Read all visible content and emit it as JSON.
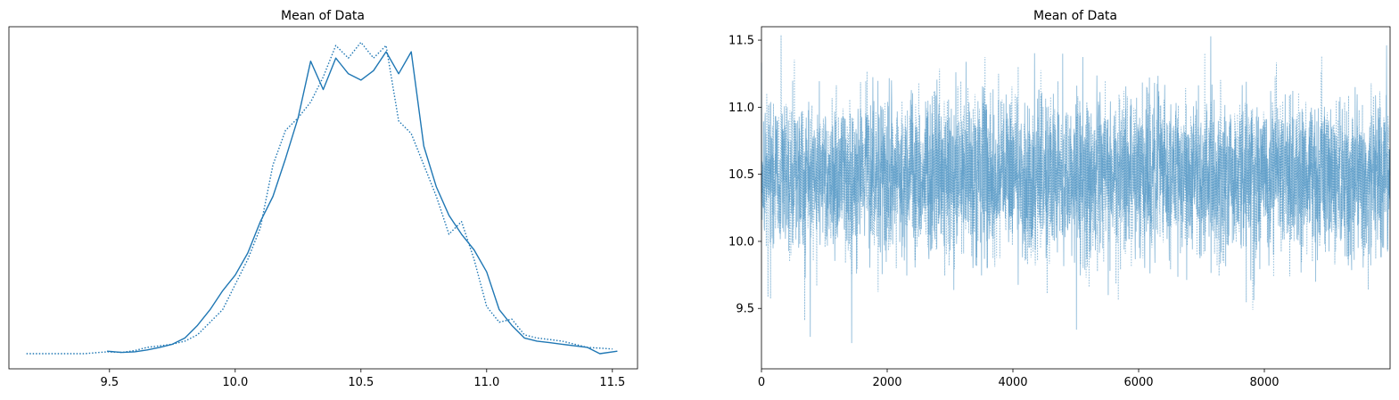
{
  "chart_data": [
    {
      "type": "line",
      "title": "Mean of Data",
      "xlabel": "",
      "ylabel": "",
      "xlim": [
        9.1,
        11.6
      ],
      "xticks": [
        "9.5",
        "10.0",
        "10.5",
        "11.0",
        "11.5"
      ],
      "yticks": [],
      "series": [
        {
          "style": "solid",
          "color": "#1f77b4",
          "x": [
            9.49,
            9.55,
            9.6,
            9.65,
            9.7,
            9.75,
            9.8,
            9.85,
            9.9,
            9.95,
            10.0,
            10.05,
            10.1,
            10.15,
            10.2,
            10.25,
            10.3,
            10.35,
            10.4,
            10.45,
            10.5,
            10.55,
            10.6,
            10.65,
            10.7,
            10.75,
            10.8,
            10.85,
            10.9,
            10.95,
            11.0,
            11.05,
            11.1,
            11.15,
            11.2,
            11.25,
            11.3,
            11.35,
            11.4,
            11.45,
            11.52
          ],
          "y": [
            0.008,
            0.004,
            0.006,
            0.012,
            0.02,
            0.03,
            0.05,
            0.09,
            0.14,
            0.2,
            0.25,
            0.32,
            0.42,
            0.5,
            0.62,
            0.75,
            0.93,
            0.84,
            0.94,
            0.89,
            0.87,
            0.9,
            0.96,
            0.89,
            0.96,
            0.66,
            0.53,
            0.44,
            0.38,
            0.33,
            0.26,
            0.14,
            0.09,
            0.05,
            0.04,
            0.035,
            0.03,
            0.025,
            0.02,
            0.0,
            0.008
          ]
        },
        {
          "style": "dotted",
          "color": "#1f77b4",
          "x": [
            9.17,
            9.3,
            9.4,
            9.49,
            9.55,
            9.6,
            9.65,
            9.7,
            9.75,
            9.8,
            9.85,
            9.9,
            9.95,
            10.0,
            10.05,
            10.1,
            10.15,
            10.2,
            10.25,
            10.3,
            10.35,
            10.4,
            10.45,
            10.5,
            10.55,
            10.6,
            10.65,
            10.7,
            10.75,
            10.8,
            10.85,
            10.9,
            10.95,
            11.0,
            11.05,
            11.1,
            11.15,
            11.2,
            11.25,
            11.3,
            11.35,
            11.4,
            11.5
          ],
          "y": [
            0.0,
            0.0,
            0.0,
            0.006,
            0.004,
            0.01,
            0.02,
            0.025,
            0.03,
            0.04,
            0.06,
            0.1,
            0.14,
            0.22,
            0.3,
            0.4,
            0.6,
            0.71,
            0.75,
            0.8,
            0.88,
            0.98,
            0.94,
            0.99,
            0.94,
            0.98,
            0.74,
            0.7,
            0.6,
            0.5,
            0.38,
            0.42,
            0.3,
            0.15,
            0.1,
            0.11,
            0.06,
            0.05,
            0.045,
            0.04,
            0.03,
            0.02,
            0.015
          ]
        }
      ]
    },
    {
      "type": "line",
      "title": "Mean of Data",
      "xlabel": "",
      "ylabel": "",
      "xlim": [
        0,
        10000
      ],
      "ylim": [
        9.05,
        11.6
      ],
      "xticks": [
        "0",
        "2000",
        "4000",
        "6000",
        "8000"
      ],
      "yticks": [
        "9.5",
        "10.0",
        "10.5",
        "11.0",
        "11.5"
      ],
      "n_samples": 10000,
      "trace_mean": 10.5,
      "trace_std": 0.3,
      "series": [
        {
          "style": "solid",
          "color": "#1f77b4",
          "opacity": 0.45
        },
        {
          "style": "dotted",
          "color": "#1f77b4",
          "opacity": 0.45
        }
      ]
    }
  ]
}
